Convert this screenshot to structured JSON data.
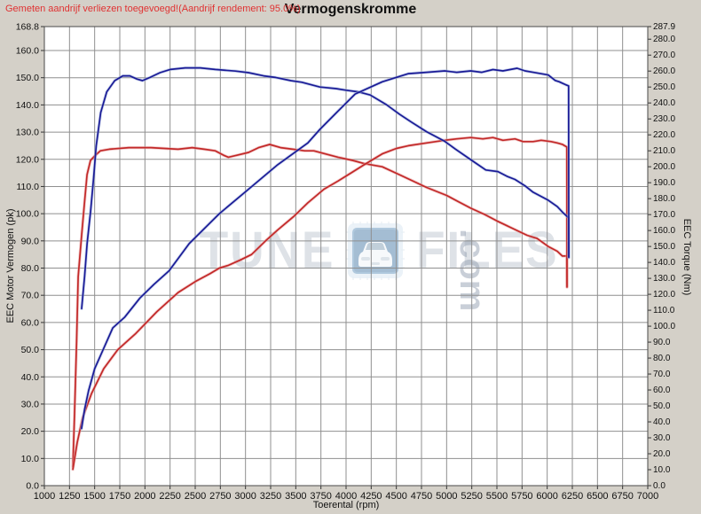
{
  "header": {
    "note": "Gemeten aandrijf verliezen toegevoegd!(Aandrijf rendement: 95.0%)",
    "title": "Vermogenskromme"
  },
  "watermark": {
    "left": "TUNE",
    "right": "FILES",
    "suffix": ".com"
  },
  "chart_data": {
    "type": "line",
    "title": "Vermogenskromme",
    "note": "Gemeten aandrijf verliezen toegevoegd!(Aandrijf rendement: 95.0%)",
    "grid": true,
    "legend_position": "none",
    "x_axis": {
      "label": "Toerental (rpm)",
      "min": 1000,
      "max": 7000,
      "ticks": [
        1000,
        1250,
        1500,
        1750,
        2000,
        2250,
        2500,
        2750,
        3000,
        3250,
        3500,
        3750,
        4000,
        4250,
        4500,
        4750,
        5000,
        5250,
        5500,
        5750,
        6000,
        6250,
        6500,
        6750,
        7000
      ]
    },
    "y_left": {
      "label": "EEC Motor Vermogen (pk)",
      "min": 0,
      "max": 168.8,
      "ticks": [
        168.8,
        160,
        150,
        140,
        130,
        120,
        110,
        100,
        90,
        80,
        70,
        60,
        50,
        40,
        30,
        20,
        10,
        0
      ]
    },
    "y_right": {
      "label": "EEC Torque (Nm)",
      "min": 0,
      "max": 287.9,
      "ticks": [
        287.9,
        280,
        270,
        260,
        250,
        240,
        230,
        220,
        210,
        200,
        190,
        180,
        170,
        160,
        150,
        140,
        130,
        120,
        110,
        100,
        90,
        80,
        70,
        60,
        50,
        40,
        30,
        20,
        10,
        0
      ]
    },
    "colors": {
      "tuned": "#1a1a96",
      "tuned_halo": "#9fb0dd",
      "original": "#c22828",
      "original_halo": "#e8a0a0",
      "grid": "#8f8f8f",
      "note_red": "#e03232"
    },
    "series": [
      {
        "name": "original-torque",
        "axis": "right",
        "color": "#c22828",
        "halo": "#e8a0a0",
        "unit": "Nm",
        "points": [
          [
            1283,
            12
          ],
          [
            1300,
            45
          ],
          [
            1320,
            90
          ],
          [
            1336,
            131
          ],
          [
            1371,
            157
          ],
          [
            1400,
            178
          ],
          [
            1424,
            195
          ],
          [
            1459,
            204
          ],
          [
            1504,
            207
          ],
          [
            1556,
            210
          ],
          [
            1645,
            211
          ],
          [
            1840,
            212
          ],
          [
            2060,
            212
          ],
          [
            2330,
            211
          ],
          [
            2470,
            212
          ],
          [
            2590,
            211
          ],
          [
            2700,
            210
          ],
          [
            2790,
            207
          ],
          [
            2830,
            206
          ],
          [
            2900,
            207
          ],
          [
            3030,
            209
          ],
          [
            3130,
            212
          ],
          [
            3240,
            214
          ],
          [
            3350,
            212
          ],
          [
            3470,
            211
          ],
          [
            3590,
            210
          ],
          [
            3680,
            210
          ],
          [
            3800,
            208
          ],
          [
            3920,
            206
          ],
          [
            4065,
            204
          ],
          [
            4180,
            202
          ],
          [
            4360,
            200
          ],
          [
            4530,
            195
          ],
          [
            4700,
            190
          ],
          [
            4800,
            187
          ],
          [
            5000,
            182
          ],
          [
            5120,
            178
          ],
          [
            5240,
            174
          ],
          [
            5380,
            170
          ],
          [
            5500,
            166
          ],
          [
            5600,
            163
          ],
          [
            5700,
            160
          ],
          [
            5800,
            157
          ],
          [
            5900,
            155
          ],
          [
            6010,
            150
          ],
          [
            6100,
            147
          ],
          [
            6150,
            144
          ],
          [
            6195,
            144
          ],
          [
            6197,
            125
          ]
        ]
      },
      {
        "name": "original-power",
        "axis": "left",
        "color": "#c22828",
        "halo": "#e8a0a0",
        "unit": "pk",
        "points": [
          [
            1283,
            6
          ],
          [
            1327,
            16
          ],
          [
            1380,
            25
          ],
          [
            1470,
            34
          ],
          [
            1590,
            43
          ],
          [
            1730,
            50
          ],
          [
            1910,
            56
          ],
          [
            2120,
            64
          ],
          [
            2330,
            71
          ],
          [
            2500,
            75
          ],
          [
            2650,
            78
          ],
          [
            2740,
            80
          ],
          [
            2830,
            81
          ],
          [
            2950,
            83
          ],
          [
            3060,
            85
          ],
          [
            3200,
            90
          ],
          [
            3320,
            94
          ],
          [
            3480,
            99
          ],
          [
            3620,
            104
          ],
          [
            3780,
            109
          ],
          [
            3920,
            112
          ],
          [
            4050,
            115
          ],
          [
            4180,
            118
          ],
          [
            4360,
            122
          ],
          [
            4500,
            124
          ],
          [
            4620,
            125
          ],
          [
            4800,
            126
          ],
          [
            4980,
            127
          ],
          [
            5100,
            127.5
          ],
          [
            5240,
            128
          ],
          [
            5360,
            127.5
          ],
          [
            5460,
            128
          ],
          [
            5560,
            127
          ],
          [
            5680,
            127.5
          ],
          [
            5760,
            126.5
          ],
          [
            5860,
            126.5
          ],
          [
            5940,
            127
          ],
          [
            6040,
            126.5
          ],
          [
            6100,
            126
          ],
          [
            6150,
            125.5
          ],
          [
            6195,
            124.5
          ],
          [
            6197,
            73
          ]
        ]
      },
      {
        "name": "tuned-torque",
        "axis": "right",
        "color": "#1a1a96",
        "halo": "#9fb0dd",
        "unit": "Nm",
        "points": [
          [
            1371,
            111
          ],
          [
            1400,
            131
          ],
          [
            1425,
            152
          ],
          [
            1460,
            172
          ],
          [
            1490,
            193
          ],
          [
            1515,
            213
          ],
          [
            1560,
            234
          ],
          [
            1620,
            247
          ],
          [
            1700,
            254
          ],
          [
            1780,
            257
          ],
          [
            1850,
            257
          ],
          [
            1920,
            255
          ],
          [
            1975,
            254
          ],
          [
            2050,
            256
          ],
          [
            2150,
            259
          ],
          [
            2250,
            261
          ],
          [
            2400,
            262
          ],
          [
            2550,
            262
          ],
          [
            2700,
            261
          ],
          [
            2900,
            260
          ],
          [
            3030,
            259
          ],
          [
            3180,
            257
          ],
          [
            3300,
            256
          ],
          [
            3450,
            254
          ],
          [
            3560,
            253
          ],
          [
            3740,
            250
          ],
          [
            3900,
            249
          ],
          [
            4000,
            248
          ],
          [
            4120,
            247
          ],
          [
            4240,
            245
          ],
          [
            4400,
            239
          ],
          [
            4530,
            233
          ],
          [
            4650,
            228
          ],
          [
            4800,
            222
          ],
          [
            4980,
            216
          ],
          [
            5090,
            211
          ],
          [
            5250,
            204
          ],
          [
            5390,
            198
          ],
          [
            5510,
            197
          ],
          [
            5600,
            194
          ],
          [
            5680,
            192
          ],
          [
            5780,
            188
          ],
          [
            5860,
            184
          ],
          [
            6010,
            179
          ],
          [
            6100,
            175
          ],
          [
            6160,
            171
          ],
          [
            6213,
            168
          ],
          [
            6215,
            143
          ]
        ]
      },
      {
        "name": "tuned-power",
        "axis": "left",
        "color": "#1a1a96",
        "halo": "#9fb0dd",
        "unit": "pk",
        "points": [
          [
            1370,
            21
          ],
          [
            1400,
            28
          ],
          [
            1440,
            35
          ],
          [
            1500,
            43
          ],
          [
            1560,
            48
          ],
          [
            1680,
            58
          ],
          [
            1800,
            62
          ],
          [
            1950,
            69
          ],
          [
            2090,
            74
          ],
          [
            2240,
            79
          ],
          [
            2440,
            89
          ],
          [
            2740,
            100
          ],
          [
            3030,
            109
          ],
          [
            3320,
            118
          ],
          [
            3620,
            126
          ],
          [
            3740,
            131
          ],
          [
            3900,
            137
          ],
          [
            4090,
            144
          ],
          [
            4360,
            148.5
          ],
          [
            4620,
            151.5
          ],
          [
            4800,
            152
          ],
          [
            4980,
            152.5
          ],
          [
            5100,
            152
          ],
          [
            5240,
            152.5
          ],
          [
            5350,
            152
          ],
          [
            5460,
            153
          ],
          [
            5560,
            152.5
          ],
          [
            5700,
            153.5
          ],
          [
            5780,
            152.5
          ],
          [
            5860,
            152
          ],
          [
            6010,
            151
          ],
          [
            6080,
            149
          ],
          [
            6120,
            148.5
          ],
          [
            6180,
            147.5
          ],
          [
            6213,
            147
          ],
          [
            6215,
            84
          ]
        ]
      }
    ]
  }
}
